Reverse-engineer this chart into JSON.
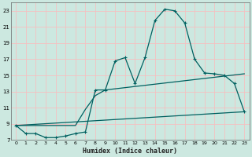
{
  "xlabel": "Humidex (Indice chaleur)",
  "bg_color": "#cce8e0",
  "grid_color": "#f5c0c0",
  "line_color": "#006060",
  "curve1_x": [
    0,
    1,
    2,
    3,
    4,
    5,
    6,
    7,
    8,
    9,
    10,
    11,
    12,
    13,
    14,
    15,
    16,
    17,
    18,
    19,
    20,
    21,
    22,
    23
  ],
  "curve1_y": [
    8.8,
    7.8,
    7.8,
    7.3,
    7.3,
    7.5,
    7.8,
    8.0,
    13.2,
    13.2,
    16.8,
    17.2,
    14.0,
    17.2,
    21.8,
    23.2,
    23.0,
    21.5,
    17.0,
    15.3,
    15.2,
    15.0,
    14.0,
    10.5
  ],
  "curve2_x": [
    0,
    6,
    7,
    8,
    9,
    23
  ],
  "curve2_y": [
    8.8,
    8.8,
    10.8,
    12.5,
    13.2,
    15.2
  ],
  "curve3_x": [
    0,
    23
  ],
  "curve3_y": [
    8.8,
    10.5
  ],
  "ylim": [
    7,
    24
  ],
  "xlim": [
    -0.5,
    23.5
  ],
  "yticks": [
    7,
    9,
    11,
    13,
    15,
    17,
    19,
    21,
    23
  ],
  "xticks": [
    0,
    1,
    2,
    3,
    4,
    5,
    6,
    7,
    8,
    9,
    10,
    11,
    12,
    13,
    14,
    15,
    16,
    17,
    18,
    19,
    20,
    21,
    22,
    23
  ]
}
